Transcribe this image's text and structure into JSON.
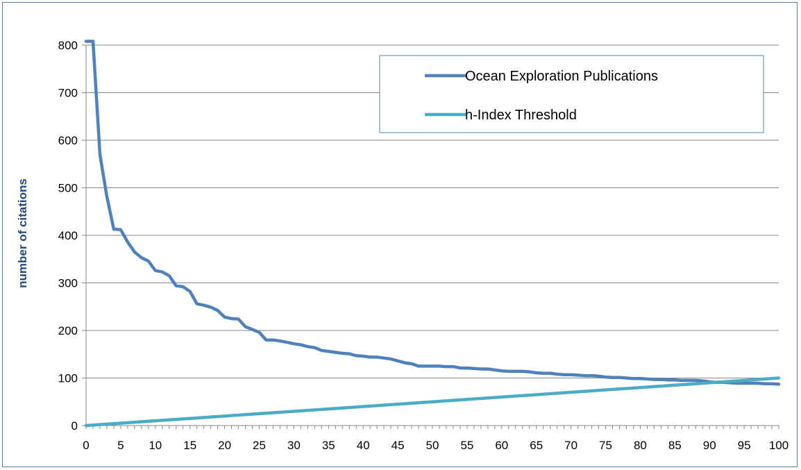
{
  "chart_data": {
    "type": "line",
    "title": "",
    "xlabel": "",
    "ylabel": "number of citations",
    "xlim": [
      0,
      100
    ],
    "ylim": [
      0,
      800
    ],
    "x_ticks": [
      "0",
      "5",
      "10",
      "15",
      "20",
      "25",
      "30",
      "35",
      "40",
      "45",
      "50",
      "55",
      "60",
      "65",
      "70",
      "75",
      "80",
      "85",
      "90",
      "95",
      "100"
    ],
    "y_ticks": [
      "0",
      "100",
      "200",
      "300",
      "400",
      "500",
      "600",
      "700",
      "800"
    ],
    "grid": "horizontal",
    "legend_position": "top-right",
    "colors": {
      "publications": "#4f81bd",
      "threshold": "#4bacc6",
      "axis": "#868686",
      "grid": "#868686",
      "ylabel": "#1f497d",
      "border": "#4f81bd"
    },
    "series": [
      {
        "name": "Ocean Exploration Publications",
        "x": [
          0,
          1,
          2,
          3,
          4,
          5,
          6,
          7,
          8,
          9,
          10,
          11,
          12,
          13,
          14,
          15,
          16,
          17,
          18,
          19,
          20,
          21,
          22,
          23,
          24,
          25,
          26,
          27,
          28,
          29,
          30,
          31,
          32,
          33,
          34,
          35,
          36,
          37,
          38,
          39,
          40,
          41,
          42,
          43,
          44,
          45,
          46,
          47,
          48,
          49,
          50,
          51,
          52,
          53,
          54,
          55,
          56,
          57,
          58,
          59,
          60,
          61,
          62,
          63,
          64,
          65,
          66,
          67,
          68,
          69,
          70,
          71,
          72,
          73,
          74,
          75,
          76,
          77,
          78,
          79,
          80,
          81,
          82,
          83,
          84,
          85,
          86,
          87,
          88,
          89,
          90,
          91,
          92,
          93,
          94,
          95,
          96,
          97,
          98,
          99,
          100
        ],
        "values": [
          808,
          808,
          570,
          482,
          413,
          412,
          386,
          365,
          353,
          346,
          326,
          323,
          315,
          294,
          292,
          282,
          256,
          253,
          249,
          242,
          228,
          225,
          224,
          208,
          202,
          196,
          180,
          180,
          178,
          175,
          172,
          170,
          166,
          164,
          158,
          156,
          154,
          152,
          151,
          147,
          146,
          144,
          144,
          142,
          140,
          136,
          132,
          130,
          125,
          125,
          125,
          125,
          124,
          124,
          121,
          121,
          120,
          119,
          119,
          117,
          115,
          114,
          114,
          114,
          113,
          111,
          110,
          110,
          108,
          107,
          107,
          106,
          105,
          105,
          104,
          102,
          101,
          101,
          100,
          99,
          99,
          98,
          97,
          97,
          96,
          96,
          95,
          95,
          95,
          94,
          92,
          91,
          91,
          90,
          89,
          89,
          89,
          89,
          88,
          88,
          87
        ]
      },
      {
        "name": "h-Index Threshold",
        "x": [
          0,
          100
        ],
        "values": [
          0,
          100
        ]
      }
    ]
  }
}
